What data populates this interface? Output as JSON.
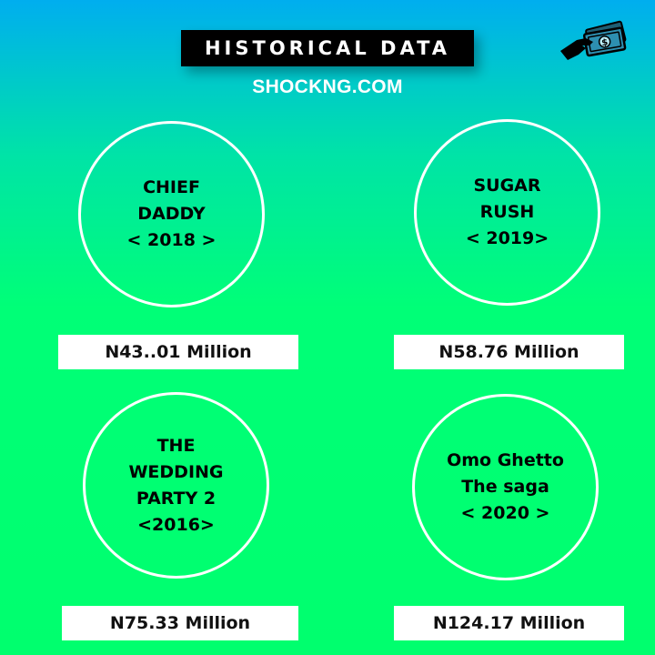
{
  "header": {
    "title": "HISTORICAL DATA",
    "site": "SHOCKNG.COM",
    "icon": "money-hand-icon"
  },
  "films": [
    {
      "lines": [
        "CHIEF",
        "DADDY",
        "< 2018 >"
      ],
      "value": "N43..01 Million"
    },
    {
      "lines": [
        "SUGAR",
        "RUSH",
        "< 2019>"
      ],
      "value": "N58.76 Million"
    },
    {
      "lines": [
        "THE",
        "WEDDING",
        "PARTY 2",
        "<2016>"
      ],
      "value": "N75.33 Million"
    },
    {
      "lines": [
        "Omo Ghetto",
        "The saga",
        "< 2020 >"
      ],
      "value": "N124.17 Million"
    }
  ],
  "colors": {
    "gradient_top": "#00aeef",
    "gradient_bottom": "#00ff6e",
    "title_bg": "#000000",
    "text": "#000000",
    "box_bg": "#ffffff"
  }
}
